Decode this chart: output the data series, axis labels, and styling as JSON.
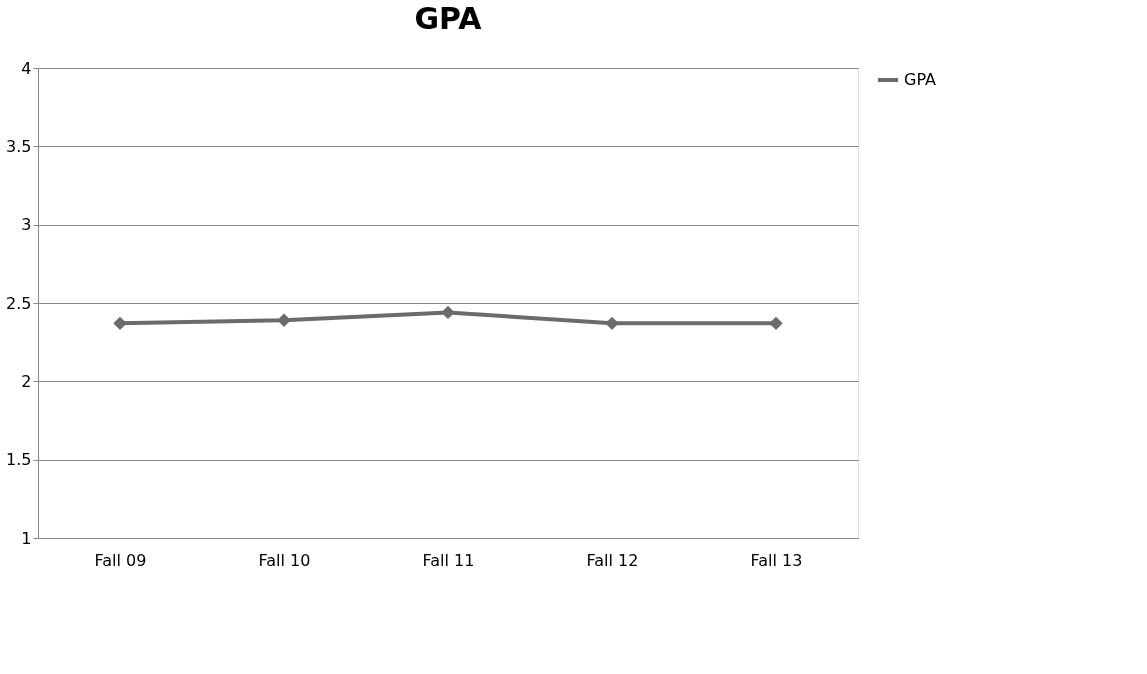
{
  "chart_data": {
    "type": "line",
    "title": "GPA",
    "categories": [
      "Fall 09",
      "Fall 10",
      "Fall 11",
      "Fall 12",
      "Fall 13"
    ],
    "series": [
      {
        "name": "GPA",
        "color": "#6b6b6b",
        "values": [
          2.37,
          2.39,
          2.44,
          2.37,
          2.37
        ]
      }
    ],
    "ylim": [
      1,
      4
    ],
    "yticks": [
      1,
      1.5,
      2,
      2.5,
      3,
      3.5,
      4
    ],
    "grid": "y",
    "legend": "right",
    "marker": "diamond",
    "line_style": "solid"
  }
}
